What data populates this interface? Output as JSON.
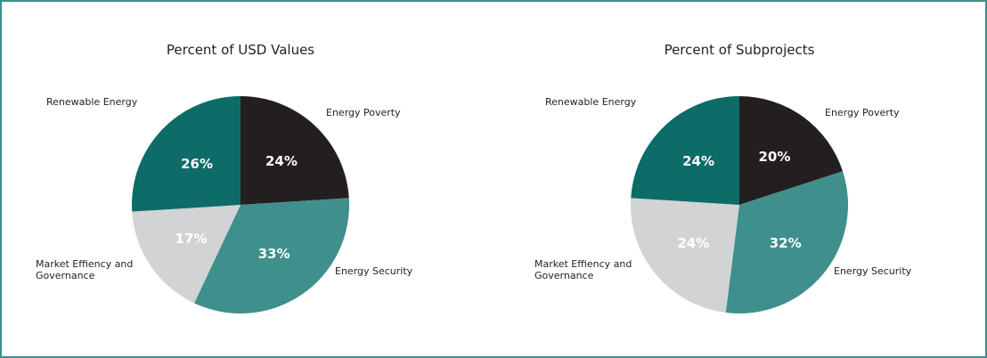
{
  "chart_data": [
    {
      "type": "pie",
      "title": "Percent of USD Values",
      "categories": [
        "Energy Poverty",
        "Energy Security",
        "Market Effiency and Governance",
        "Renewable Energy"
      ],
      "values": [
        24,
        33,
        17,
        26
      ],
      "value_labels": [
        "24%",
        "33%",
        "17%",
        "26%"
      ],
      "colors": [
        "#231f20",
        "#3f8f8c",
        "#d1d3d4",
        "#0d6b68"
      ]
    },
    {
      "type": "pie",
      "title": "Percent of Subprojects",
      "categories": [
        "Energy Poverty",
        "Energy Security",
        "Market Effiency and Governance",
        "Renewable Energy"
      ],
      "values": [
        20,
        32,
        24,
        24
      ],
      "value_labels": [
        "20%",
        "32%",
        "24%",
        "24%"
      ],
      "colors": [
        "#231f20",
        "#3f8f8c",
        "#d1d3d4",
        "#0d6b68"
      ]
    }
  ]
}
